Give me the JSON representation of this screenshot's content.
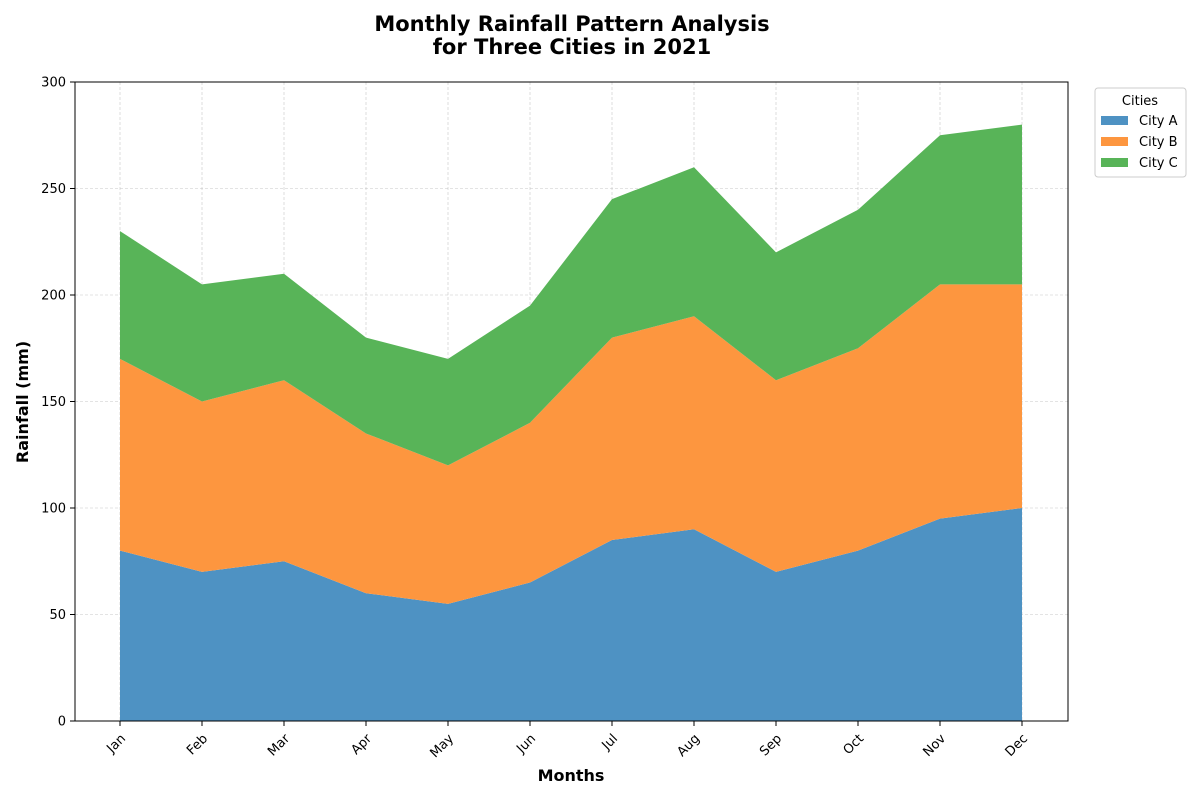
{
  "chart_data": {
    "type": "area",
    "stacked": true,
    "title_lines": [
      "Monthly Rainfall Pattern Analysis",
      "for Three Cities in 2021"
    ],
    "xlabel": "Months",
    "ylabel": "Rainfall (mm)",
    "categories": [
      "Jan",
      "Feb",
      "Mar",
      "Apr",
      "May",
      "Jun",
      "Jul",
      "Aug",
      "Sep",
      "Oct",
      "Nov",
      "Dec"
    ],
    "ylim": [
      0,
      300
    ],
    "yticks": [
      0,
      50,
      100,
      150,
      200,
      250,
      300
    ],
    "grid": true,
    "legend": {
      "title": "Cities",
      "placement": "outside-top-right"
    },
    "series": [
      {
        "name": "City A",
        "color": "#4e92c3",
        "values": [
          80,
          70,
          75,
          60,
          55,
          65,
          85,
          90,
          70,
          80,
          95,
          100
        ]
      },
      {
        "name": "City B",
        "color": "#fd963f",
        "values": [
          90,
          80,
          85,
          75,
          65,
          75,
          95,
          100,
          90,
          95,
          110,
          105
        ]
      },
      {
        "name": "City C",
        "color": "#58b458",
        "values": [
          60,
          55,
          50,
          45,
          50,
          55,
          65,
          70,
          60,
          65,
          70,
          75
        ]
      }
    ]
  }
}
